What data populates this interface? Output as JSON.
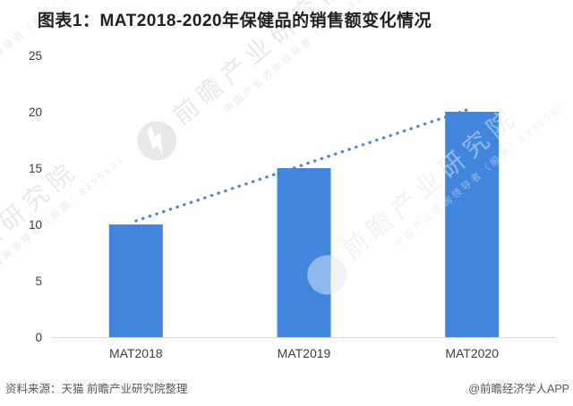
{
  "title": "图表1：MAT2018-2020年保健品的销售额变化情况",
  "footer": {
    "source": "资料来源：天猫 前瞻产业研究院整理",
    "credit": "@前瞻经济学人APP"
  },
  "watermark": {
    "main": "前瞻产业研究院",
    "sub": "中国产业咨询领导者（股票：839599）"
  },
  "chart_data": {
    "type": "bar",
    "title": "图表1：MAT2018-2020年保健品的销售额变化情况",
    "categories": [
      "MAT2018",
      "MAT2019",
      "MAT2020"
    ],
    "values": [
      10,
      15,
      20
    ],
    "xlabel": "",
    "ylabel": "",
    "ylim": [
      0,
      25
    ],
    "yticks": [
      0,
      5,
      10,
      15,
      20,
      25
    ],
    "grid": false,
    "legend": "none",
    "bar_color": "#4285DC",
    "axis_color": "#D9D9D9",
    "tick_label_color": "#3D3D3D",
    "trend_line": {
      "style": "dotted",
      "color": "#4C86D8",
      "from_category": "MAT2018",
      "from_value": 10,
      "to_category": "MAT2020",
      "to_value": 20,
      "connects": "bar tops, straight line"
    }
  }
}
